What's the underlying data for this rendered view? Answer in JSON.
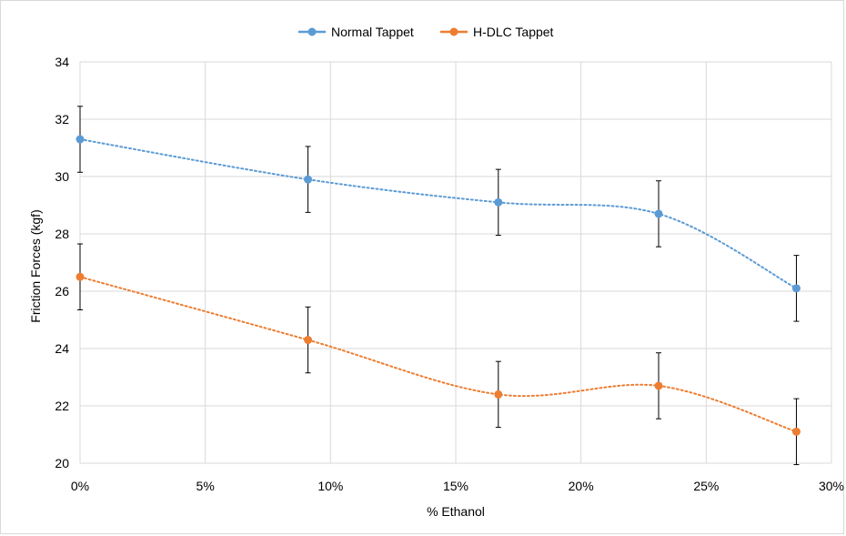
{
  "chart_data": {
    "type": "scatter",
    "title": "",
    "xlabel": "% Ethanol",
    "ylabel": "Friction Forces (kgf)",
    "xlim": [
      0,
      30
    ],
    "ylim": [
      20,
      34
    ],
    "x_ticks": [
      {
        "value": 0,
        "label": "0%"
      },
      {
        "value": 5,
        "label": "5%"
      },
      {
        "value": 10,
        "label": "10%"
      },
      {
        "value": 15,
        "label": "15%"
      },
      {
        "value": 20,
        "label": "20%"
      },
      {
        "value": 25,
        "label": "25%"
      },
      {
        "value": 30,
        "label": "30%"
      }
    ],
    "y_ticks": [
      {
        "value": 20,
        "label": "20"
      },
      {
        "value": 22,
        "label": "22"
      },
      {
        "value": 24,
        "label": "24"
      },
      {
        "value": 26,
        "label": "26"
      },
      {
        "value": 28,
        "label": "28"
      },
      {
        "value": 30,
        "label": "30"
      },
      {
        "value": 32,
        "label": "32"
      },
      {
        "value": 34,
        "label": "34"
      }
    ],
    "grid": true,
    "legend_position": "top-center",
    "series": [
      {
        "name": "Normal Tappet",
        "color": "#5b9bd5",
        "x": [
          0,
          9.1,
          16.7,
          23.1,
          28.6
        ],
        "y": [
          31.3,
          29.9,
          29.1,
          28.7,
          26.1
        ],
        "error": [
          1.15,
          1.15,
          1.15,
          1.15,
          1.15
        ],
        "trendline": "dotted polynomial"
      },
      {
        "name": "H-DLC Tappet",
        "color": "#ed7d31",
        "x": [
          0,
          9.1,
          16.7,
          23.1,
          28.6
        ],
        "y": [
          26.5,
          24.3,
          22.4,
          22.7,
          21.1
        ],
        "error": [
          1.15,
          1.15,
          1.15,
          1.15,
          1.15
        ],
        "trendline": "dotted polynomial"
      }
    ],
    "error_bar_color": "#000000",
    "grid_color": "#d9d9d9"
  }
}
